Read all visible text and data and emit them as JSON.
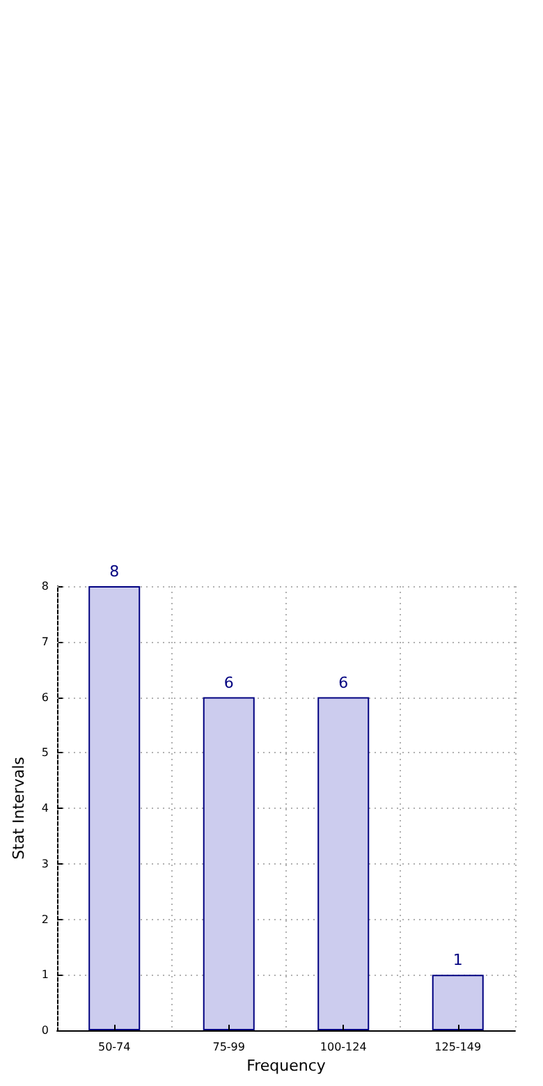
{
  "chart_data": {
    "type": "bar",
    "xlabel": "Frequency",
    "ylabel": "Stat Intervals",
    "categories": [
      "50-74",
      "75-99",
      "100-124",
      "125-149"
    ],
    "values": [
      8,
      6,
      6,
      1
    ],
    "color": "#ccccee",
    "ylim": [
      0,
      8
    ],
    "yticks": [
      0,
      1,
      2,
      3,
      4,
      5,
      6,
      7,
      8
    ],
    "grid": true,
    "data_labels": true
  }
}
